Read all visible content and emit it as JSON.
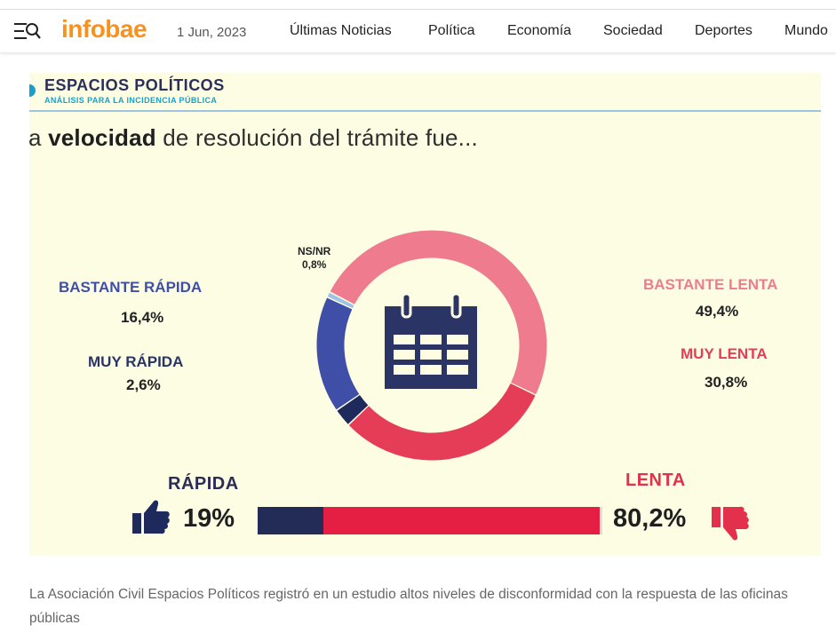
{
  "header": {
    "logo": "infobae",
    "date": "1 Jun, 2023",
    "nav": [
      "Últimas Noticias",
      "Política",
      "Economía",
      "Sociedad",
      "Deportes",
      "Mundo"
    ]
  },
  "figure": {
    "brand": {
      "name": "ESPACIOS POLÍTICOS",
      "subtitle": "ANÁLISIS PARA LA INCIDENCIA PÚBLICA"
    },
    "headline": {
      "prefix": "a ",
      "bold": "velocidad",
      "rest": " de resolución del trámite fue..."
    },
    "labels": {
      "bastante_rapida": {
        "name": "BASTANTE RÁPIDA",
        "value": "16,4%"
      },
      "muy_rapida": {
        "name": "MUY RÁPIDA",
        "value": "2,6%"
      },
      "nsnr": {
        "name": "NS/NR",
        "value": "0,8%"
      },
      "bastante_lenta": {
        "name": "BASTANTE LENTA",
        "value": "49,4%"
      },
      "muy_lenta": {
        "name": "MUY LENTA",
        "value": "30,8%"
      }
    },
    "summary": {
      "rapida": {
        "label": "RÁPIDA",
        "value": "19%",
        "share": 19.0
      },
      "lenta": {
        "label": "LENTA",
        "value": "80,2%",
        "share": 80.2
      }
    }
  },
  "chart_data": {
    "type": "pie",
    "title": "La velocidad de resolución del trámite fue...",
    "categories": [
      "Bastante lenta",
      "Muy lenta",
      "Muy rápida",
      "Bastante rápida",
      "NS/NR"
    ],
    "values": [
      49.4,
      30.8,
      2.6,
      16.4,
      0.8
    ],
    "units": "%"
  },
  "colors": {
    "logo": "#f7921e",
    "bastante_lenta": "#ee7c8e",
    "muy_lenta": "#e53d58",
    "muy_rapida": "#1f2a5c",
    "bastante_rapida": "#3f4fa8",
    "nsnr": "#9ec3e6",
    "rapida_text": "#2a2d55",
    "lenta_text": "#e2304d",
    "bar_fast": "#232c57",
    "bar_slow": "#e51f44",
    "calendar": "#2a3566"
  },
  "caption": "La Asociación Civil Espacios Políticos registró en un estudio altos niveles de disconformidad con la respuesta de las oficinas públicas"
}
